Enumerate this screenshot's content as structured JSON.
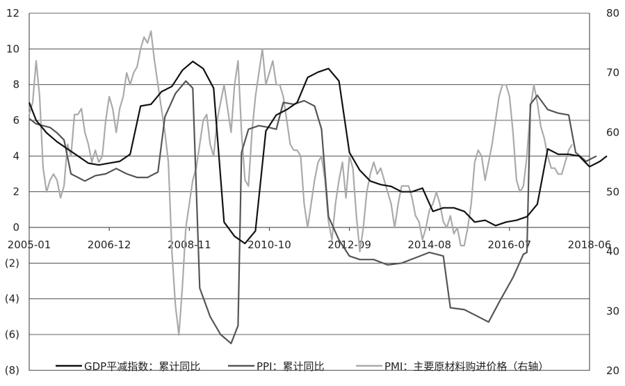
{
  "colors": {
    "gdp": "#111111",
    "ppi": "#555555",
    "pmi": "#aaaaaa",
    "grid": "#333333",
    "axis": "#333333",
    "background": "#ffffff"
  },
  "chart_data": {
    "type": "line",
    "title": "",
    "xlabel": "",
    "ylabel": "",
    "y_left_ticks": [
      "12",
      "10",
      "8",
      "6",
      "4",
      "2",
      "0",
      "(2)",
      "(4)",
      "(6)",
      "(8)"
    ],
    "y_right_ticks": [
      "80",
      "70",
      "60",
      "50",
      "40",
      "30",
      "20"
    ],
    "x_tick_labels": [
      "2005-01",
      "2006-12",
      "2008-11",
      "2010-10",
      "2012-09",
      "2014-08",
      "2016-07",
      "2018-06"
    ],
    "ylim_left": [
      -8,
      12
    ],
    "ylim_right": [
      20,
      80
    ],
    "x_range": [
      "2005-01",
      "2018-06"
    ],
    "grid": "horizontal",
    "legend_position": "bottom",
    "series": [
      {
        "name": "GDP平减指数：累计同比",
        "axis": "left",
        "points": [
          [
            "2005-01",
            7.0
          ],
          [
            "2005-03",
            6.0
          ],
          [
            "2005-06",
            5.3
          ],
          [
            "2005-09",
            4.8
          ],
          [
            "2005-12",
            4.4
          ],
          [
            "2006-03",
            4.0
          ],
          [
            "2006-06",
            3.6
          ],
          [
            "2006-09",
            3.5
          ],
          [
            "2006-12",
            3.6
          ],
          [
            "2007-03",
            3.7
          ],
          [
            "2007-06",
            4.1
          ],
          [
            "2007-09",
            6.8
          ],
          [
            "2007-12",
            6.9
          ],
          [
            "2008-03",
            7.6
          ],
          [
            "2008-06",
            7.9
          ],
          [
            "2008-09",
            8.8
          ],
          [
            "2008-12",
            9.3
          ],
          [
            "2009-03",
            8.9
          ],
          [
            "2009-06",
            7.8
          ],
          [
            "2009-09",
            0.3
          ],
          [
            "2009-12",
            -0.5
          ],
          [
            "2010-03",
            -0.9
          ],
          [
            "2010-06",
            -0.2
          ],
          [
            "2010-09",
            5.4
          ],
          [
            "2010-12",
            6.3
          ],
          [
            "2011-03",
            6.6
          ],
          [
            "2011-06",
            7.0
          ],
          [
            "2011-09",
            8.4
          ],
          [
            "2011-12",
            8.7
          ],
          [
            "2012-03",
            8.9
          ],
          [
            "2012-06",
            8.2
          ],
          [
            "2012-09",
            4.2
          ],
          [
            "2012-12",
            3.2
          ],
          [
            "2013-03",
            2.6
          ],
          [
            "2013-06",
            2.4
          ],
          [
            "2013-09",
            2.3
          ],
          [
            "2013-12",
            2.0
          ],
          [
            "2014-03",
            2.0
          ],
          [
            "2014-06",
            2.2
          ],
          [
            "2014-09",
            0.9
          ],
          [
            "2014-12",
            1.1
          ],
          [
            "2015-03",
            1.1
          ],
          [
            "2015-06",
            0.9
          ],
          [
            "2015-09",
            0.3
          ],
          [
            "2015-12",
            0.4
          ],
          [
            "2016-03",
            0.1
          ],
          [
            "2016-06",
            0.3
          ],
          [
            "2016-09",
            0.4
          ],
          [
            "2016-12",
            0.6
          ],
          [
            "2017-03",
            1.3
          ],
          [
            "2017-06",
            4.4
          ],
          [
            "2017-09",
            4.1
          ],
          [
            "2017-12",
            4.1
          ],
          [
            "2018-03",
            4.0
          ],
          [
            "2018-06",
            3.4
          ],
          [
            "2018-09",
            3.7
          ],
          [
            "2018-11",
            4.0
          ]
        ]
      },
      {
        "name": "PPI：累计同比",
        "axis": "left",
        "points": [
          [
            "2005-01",
            6.1
          ],
          [
            "2005-03",
            5.8
          ],
          [
            "2005-05",
            5.7
          ],
          [
            "2005-07",
            5.6
          ],
          [
            "2005-09",
            5.3
          ],
          [
            "2005-11",
            4.9
          ],
          [
            "2006-01",
            3.0
          ],
          [
            "2006-03",
            2.8
          ],
          [
            "2006-05",
            2.6
          ],
          [
            "2006-08",
            2.9
          ],
          [
            "2006-11",
            3.0
          ],
          [
            "2007-02",
            3.3
          ],
          [
            "2007-05",
            3.0
          ],
          [
            "2007-08",
            2.8
          ],
          [
            "2007-11",
            2.8
          ],
          [
            "2008-02",
            3.1
          ],
          [
            "2008-04",
            6.2
          ],
          [
            "2008-07",
            7.5
          ],
          [
            "2008-10",
            8.2
          ],
          [
            "2008-12",
            7.8
          ],
          [
            "2009-02",
            -3.4
          ],
          [
            "2009-05",
            -5.0
          ],
          [
            "2009-08",
            -6.0
          ],
          [
            "2009-11",
            -6.5
          ],
          [
            "2010-01",
            -5.5
          ],
          [
            "2010-02",
            4.2
          ],
          [
            "2010-04",
            5.5
          ],
          [
            "2010-07",
            5.7
          ],
          [
            "2010-10",
            5.6
          ],
          [
            "2010-12",
            5.5
          ],
          [
            "2011-02",
            7.0
          ],
          [
            "2011-05",
            6.9
          ],
          [
            "2011-08",
            7.1
          ],
          [
            "2011-11",
            6.8
          ],
          [
            "2012-01",
            5.5
          ],
          [
            "2012-03",
            0.6
          ],
          [
            "2012-06",
            -0.7
          ],
          [
            "2012-09",
            -1.6
          ],
          [
            "2012-12",
            -1.8
          ],
          [
            "2013-04",
            -1.8
          ],
          [
            "2013-08",
            -2.1
          ],
          [
            "2013-12",
            -2.0
          ],
          [
            "2014-04",
            -1.7
          ],
          [
            "2014-08",
            -1.4
          ],
          [
            "2014-12",
            -1.6
          ],
          [
            "2015-02",
            -4.5
          ],
          [
            "2015-06",
            -4.6
          ],
          [
            "2015-10",
            -5.0
          ],
          [
            "2016-01",
            -5.3
          ],
          [
            "2016-04",
            -4.2
          ],
          [
            "2016-08",
            -2.8
          ],
          [
            "2016-11",
            -1.5
          ],
          [
            "2016-12",
            -1.4
          ],
          [
            "2017-01",
            6.9
          ],
          [
            "2017-03",
            7.4
          ],
          [
            "2017-06",
            6.6
          ],
          [
            "2017-09",
            6.4
          ],
          [
            "2017-12",
            6.3
          ],
          [
            "2018-02",
            4.2
          ],
          [
            "2018-05",
            3.7
          ],
          [
            "2018-08",
            4.0
          ]
        ]
      },
      {
        "name": "PMI：主要原材料购进价格（右轴）",
        "axis": "right",
        "points": [
          [
            "2005-01",
            63
          ],
          [
            "2005-02",
            65
          ],
          [
            "2005-03",
            72
          ],
          [
            "2005-04",
            66
          ],
          [
            "2005-05",
            54
          ],
          [
            "2005-06",
            50
          ],
          [
            "2005-07",
            52
          ],
          [
            "2005-08",
            53
          ],
          [
            "2005-09",
            52
          ],
          [
            "2005-10",
            49
          ],
          [
            "2005-11",
            51
          ],
          [
            "2005-12",
            58
          ],
          [
            "2006-01",
            56
          ],
          [
            "2006-02",
            63
          ],
          [
            "2006-03",
            63
          ],
          [
            "2006-04",
            64
          ],
          [
            "2006-05",
            60
          ],
          [
            "2006-06",
            58
          ],
          [
            "2006-07",
            55
          ],
          [
            "2006-08",
            57
          ],
          [
            "2006-09",
            55
          ],
          [
            "2006-10",
            56
          ],
          [
            "2006-11",
            62
          ],
          [
            "2006-12",
            66
          ],
          [
            "2007-01",
            64
          ],
          [
            "2007-02",
            60
          ],
          [
            "2007-03",
            64
          ],
          [
            "2007-04",
            66
          ],
          [
            "2007-05",
            70
          ],
          [
            "2007-06",
            68
          ],
          [
            "2007-07",
            70
          ],
          [
            "2007-08",
            71
          ],
          [
            "2007-09",
            74
          ],
          [
            "2007-10",
            76
          ],
          [
            "2007-11",
            75
          ],
          [
            "2007-12",
            77
          ],
          [
            "2008-01",
            72
          ],
          [
            "2008-02",
            68
          ],
          [
            "2008-03",
            64
          ],
          [
            "2008-04",
            60
          ],
          [
            "2008-05",
            55
          ],
          [
            "2008-06",
            40
          ],
          [
            "2008-07",
            31
          ],
          [
            "2008-08",
            26
          ],
          [
            "2008-09",
            34
          ],
          [
            "2008-10",
            44
          ],
          [
            "2008-11",
            48
          ],
          [
            "2008-12",
            52
          ],
          [
            "2009-01",
            54
          ],
          [
            "2009-02",
            58
          ],
          [
            "2009-03",
            62
          ],
          [
            "2009-04",
            63
          ],
          [
            "2009-05",
            58
          ],
          [
            "2009-06",
            56
          ],
          [
            "2009-07",
            62
          ],
          [
            "2009-08",
            65
          ],
          [
            "2009-09",
            68
          ],
          [
            "2009-10",
            64
          ],
          [
            "2009-11",
            60
          ],
          [
            "2009-12",
            68
          ],
          [
            "2010-01",
            72
          ],
          [
            "2010-02",
            60
          ],
          [
            "2010-03",
            52
          ],
          [
            "2010-04",
            51
          ],
          [
            "2010-05",
            60
          ],
          [
            "2010-06",
            66
          ],
          [
            "2010-07",
            70
          ],
          [
            "2010-08",
            74
          ],
          [
            "2010-09",
            68
          ],
          [
            "2010-10",
            70
          ],
          [
            "2010-11",
            72
          ],
          [
            "2010-12",
            68
          ],
          [
            "2011-01",
            68
          ],
          [
            "2011-02",
            66
          ],
          [
            "2011-03",
            62
          ],
          [
            "2011-04",
            58
          ],
          [
            "2011-05",
            57
          ],
          [
            "2011-06",
            57
          ],
          [
            "2011-07",
            56
          ],
          [
            "2011-08",
            48
          ],
          [
            "2011-09",
            44
          ],
          [
            "2011-10",
            48
          ],
          [
            "2011-11",
            52
          ],
          [
            "2011-12",
            55
          ],
          [
            "2012-01",
            56
          ],
          [
            "2012-02",
            52
          ],
          [
            "2012-03",
            45
          ],
          [
            "2012-04",
            42
          ],
          [
            "2012-05",
            48
          ],
          [
            "2012-06",
            52
          ],
          [
            "2012-07",
            55
          ],
          [
            "2012-08",
            49
          ],
          [
            "2012-09",
            56
          ],
          [
            "2012-10",
            54
          ],
          [
            "2012-11",
            46
          ],
          [
            "2012-12",
            40
          ],
          [
            "2013-01",
            44
          ],
          [
            "2013-02",
            50
          ],
          [
            "2013-03",
            53
          ],
          [
            "2013-04",
            55
          ],
          [
            "2013-05",
            53
          ],
          [
            "2013-06",
            54
          ],
          [
            "2013-07",
            52
          ],
          [
            "2013-08",
            50
          ],
          [
            "2013-09",
            48
          ],
          [
            "2013-10",
            44
          ],
          [
            "2013-11",
            48
          ],
          [
            "2013-12",
            51
          ],
          [
            "2014-01",
            51
          ],
          [
            "2014-02",
            51
          ],
          [
            "2014-03",
            49
          ],
          [
            "2014-04",
            46
          ],
          [
            "2014-05",
            45
          ],
          [
            "2014-06",
            42
          ],
          [
            "2014-07",
            44
          ],
          [
            "2014-08",
            47
          ],
          [
            "2014-09",
            48
          ],
          [
            "2014-10",
            50
          ],
          [
            "2014-11",
            48
          ],
          [
            "2014-12",
            45
          ],
          [
            "2015-01",
            44
          ],
          [
            "2015-02",
            46
          ],
          [
            "2015-03",
            43
          ],
          [
            "2015-04",
            44
          ],
          [
            "2015-05",
            41
          ],
          [
            "2015-06",
            41
          ],
          [
            "2015-07",
            44
          ],
          [
            "2015-08",
            48
          ],
          [
            "2015-09",
            55
          ],
          [
            "2015-10",
            57
          ],
          [
            "2015-11",
            56
          ],
          [
            "2015-12",
            52
          ],
          [
            "2016-01",
            55
          ],
          [
            "2016-02",
            58
          ],
          [
            "2016-03",
            62
          ],
          [
            "2016-04",
            66
          ],
          [
            "2016-05",
            68
          ],
          [
            "2016-06",
            68
          ],
          [
            "2016-07",
            66
          ],
          [
            "2016-08",
            60
          ],
          [
            "2016-09",
            52
          ],
          [
            "2016-10",
            50
          ],
          [
            "2016-11",
            51
          ],
          [
            "2016-12",
            56
          ],
          [
            "2017-01",
            64
          ],
          [
            "2017-02",
            68
          ],
          [
            "2017-03",
            65
          ],
          [
            "2017-04",
            61
          ],
          [
            "2017-05",
            59
          ],
          [
            "2017-06",
            56
          ],
          [
            "2017-07",
            54
          ],
          [
            "2017-08",
            54
          ],
          [
            "2017-09",
            53
          ],
          [
            "2017-10",
            53
          ],
          [
            "2017-11",
            55
          ],
          [
            "2017-12",
            57
          ],
          [
            "2018-01",
            58
          ]
        ]
      }
    ]
  }
}
